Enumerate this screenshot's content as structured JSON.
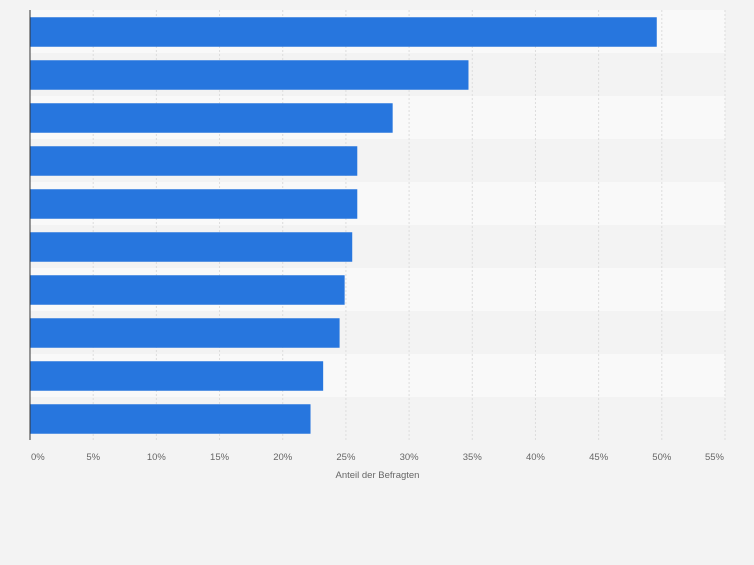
{
  "chart_data": {
    "type": "bar",
    "orientation": "horizontal",
    "title": "",
    "xlabel": "Anteil der Befragten",
    "ylabel": "",
    "xlim": [
      0,
      55
    ],
    "tick_values": [
      0,
      5,
      10,
      15,
      20,
      25,
      30,
      35,
      40,
      45,
      50,
      55
    ],
    "tick_labels": [
      "0%",
      "5%",
      "10%",
      "15%",
      "20%",
      "25%",
      "30%",
      "35%",
      "40%",
      "45%",
      "50%",
      "55%"
    ],
    "categories": [
      "",
      "",
      "",
      "",
      "",
      "",
      "",
      "",
      "",
      ""
    ],
    "values": [
      49.6,
      34.7,
      28.7,
      25.9,
      25.9,
      25.5,
      24.9,
      24.5,
      23.2,
      22.2
    ],
    "grid": true,
    "legend": "none"
  },
  "colors": {
    "bar": "#2776de",
    "band_light": "#f9f9f9",
    "band_dark": "#f3f3f3",
    "grid": "#dcdcdc",
    "axis": "#333333",
    "tick_text": "#666666",
    "background": "#f3f3f3"
  }
}
